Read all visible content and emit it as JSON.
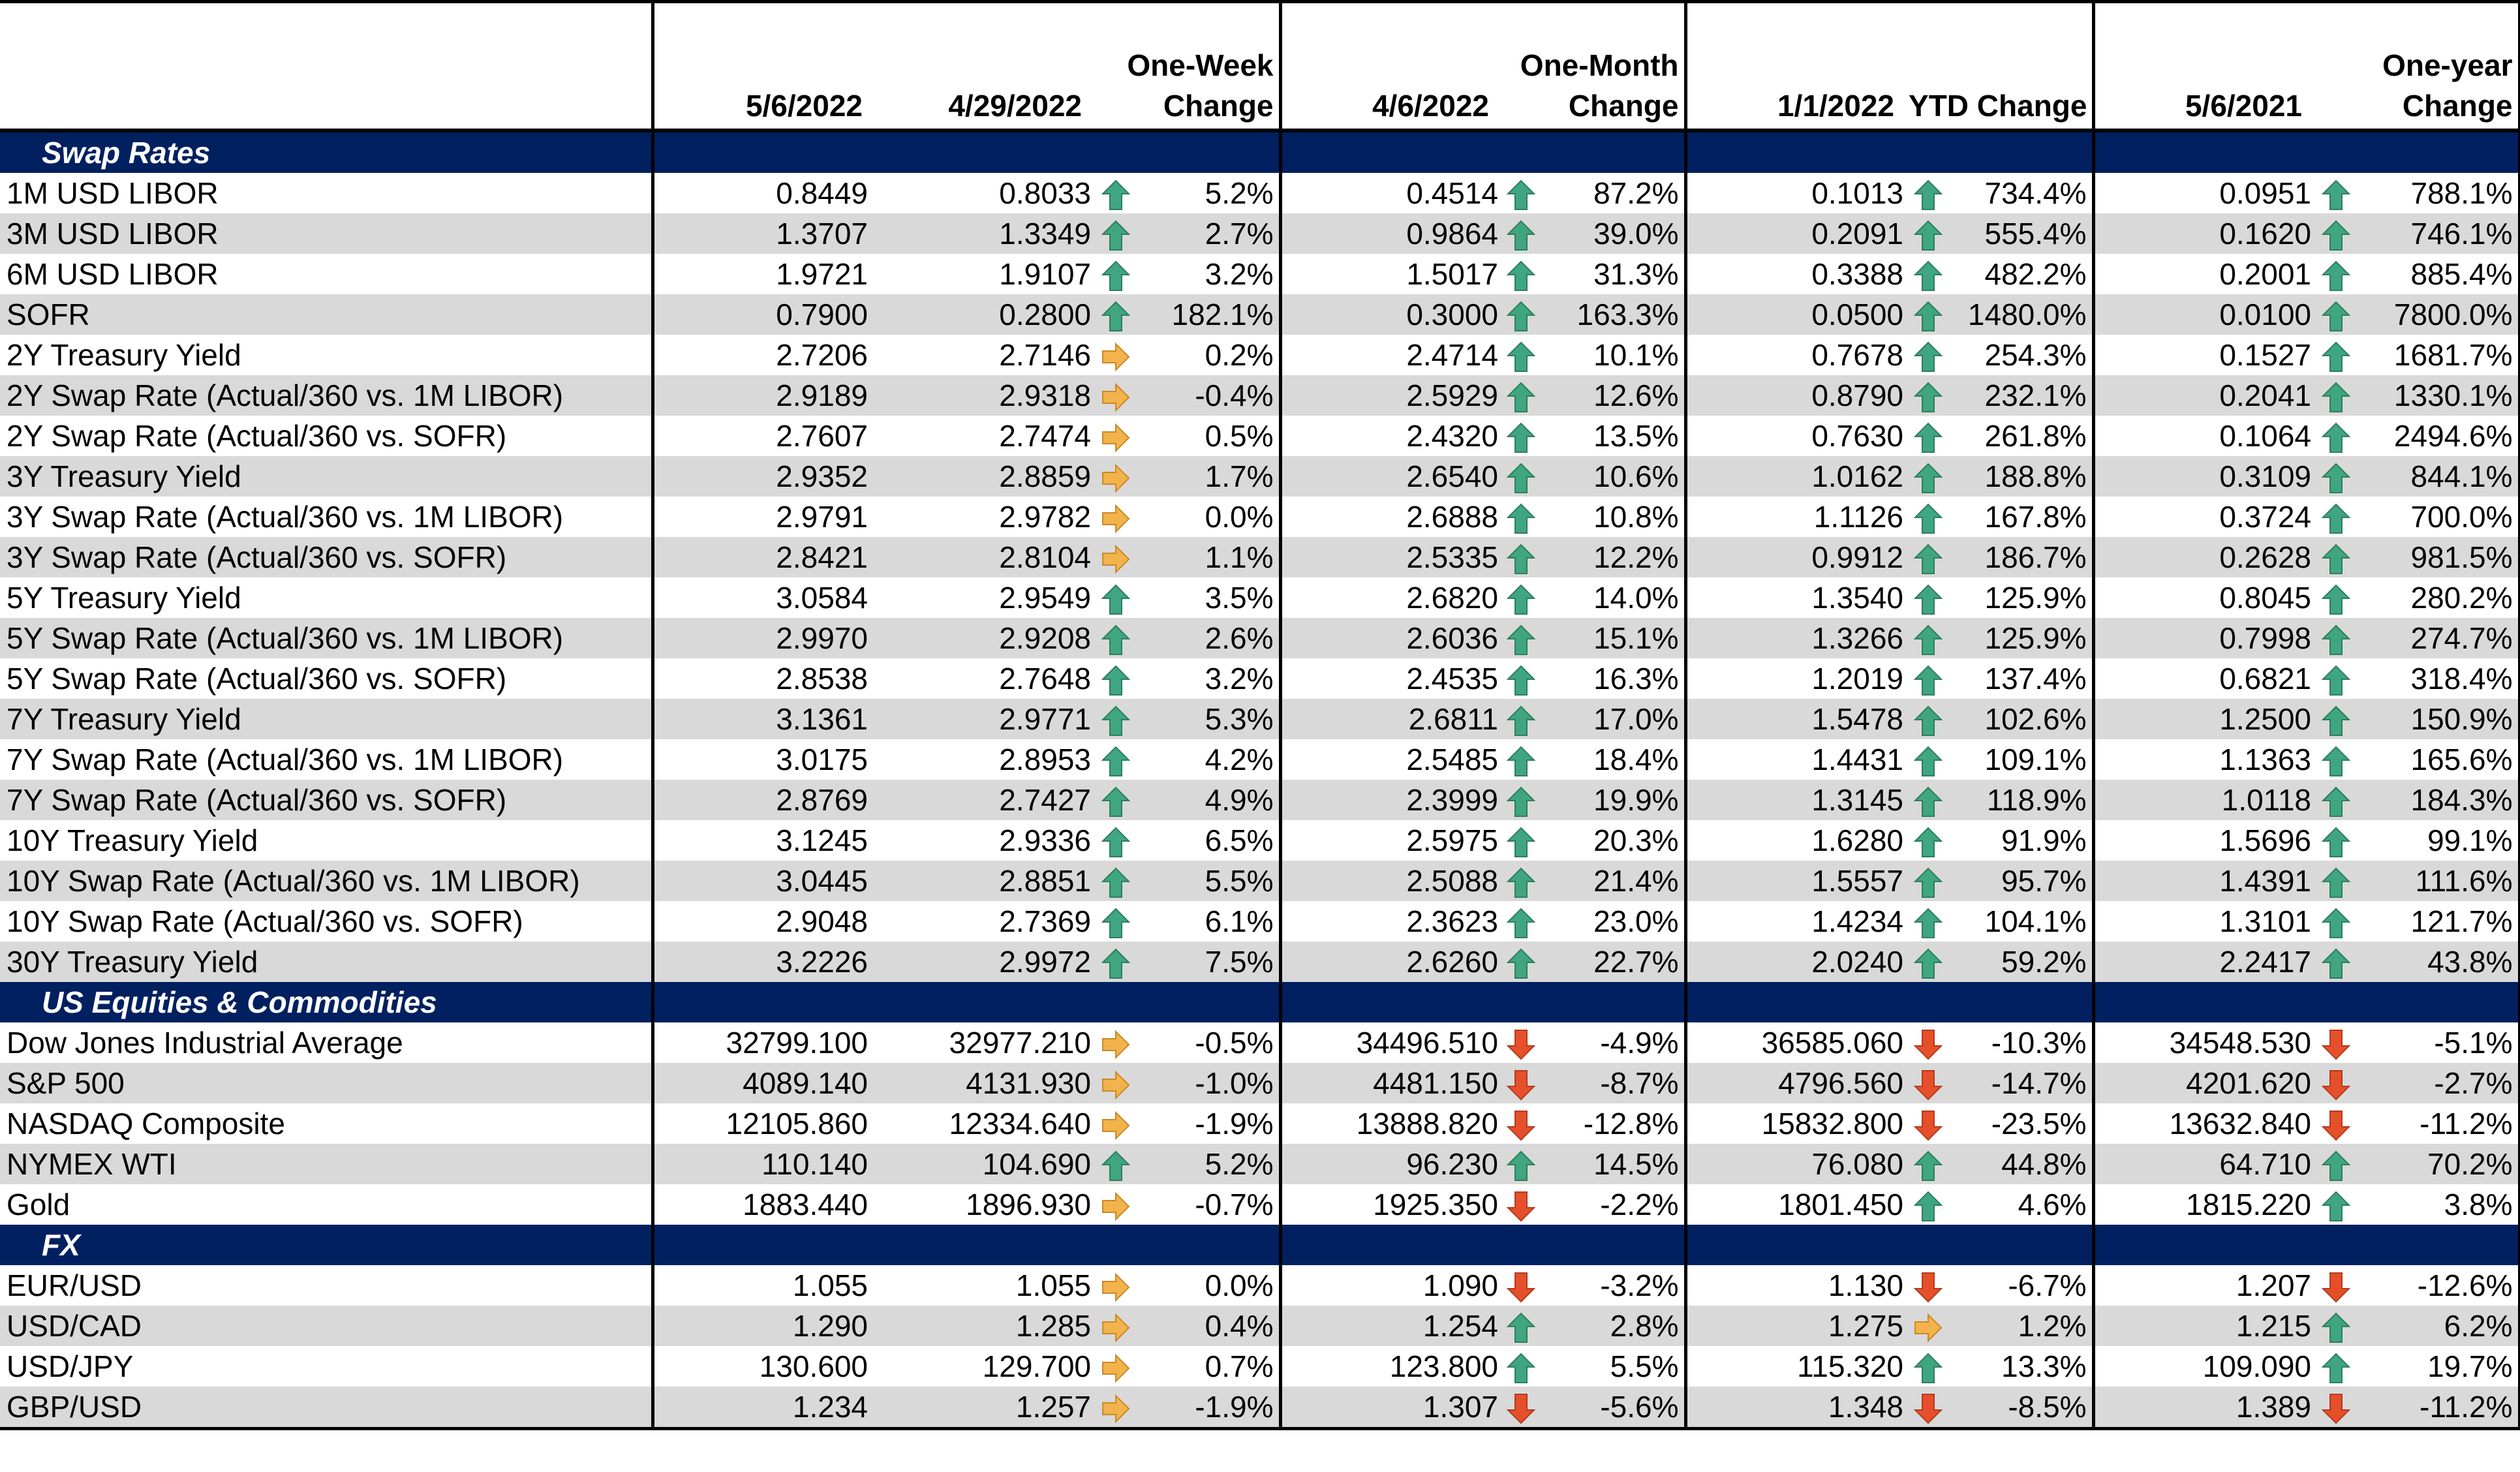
{
  "header": {
    "label": "",
    "col1": "5/6/2022",
    "col2": "4/29/2022",
    "col3": "One-Week Change",
    "col4": "4/6/2022",
    "col5": "One-Month Change",
    "col6": "1/1/2022",
    "col7": "YTD Change",
    "col8": "5/6/2021",
    "col9": "One-year Change"
  },
  "colors": {
    "section_bg": "#002060",
    "alt_row": "#d9d9d9",
    "up_arrow": "#3fa681",
    "down_arrow": "#e5502b",
    "flat_arrow": "#f2b34c"
  },
  "sections": [
    {
      "title": "Swap Rates",
      "rows": [
        {
          "name": "1M USD LIBOR",
          "v1": "0.8449",
          "v2": "0.8033",
          "a1": "up",
          "c1": "5.2%",
          "v3": "0.4514",
          "a2": "up",
          "c2": "87.2%",
          "v4": "0.1013",
          "a3": "up",
          "c3": "734.4%",
          "v5": "0.0951",
          "a4": "up",
          "c4": "788.1%"
        },
        {
          "name": "3M USD LIBOR",
          "v1": "1.3707",
          "v2": "1.3349",
          "a1": "up",
          "c1": "2.7%",
          "v3": "0.9864",
          "a2": "up",
          "c2": "39.0%",
          "v4": "0.2091",
          "a3": "up",
          "c3": "555.4%",
          "v5": "0.1620",
          "a4": "up",
          "c4": "746.1%"
        },
        {
          "name": "6M USD LIBOR",
          "v1": "1.9721",
          "v2": "1.9107",
          "a1": "up",
          "c1": "3.2%",
          "v3": "1.5017",
          "a2": "up",
          "c2": "31.3%",
          "v4": "0.3388",
          "a3": "up",
          "c3": "482.2%",
          "v5": "0.2001",
          "a4": "up",
          "c4": "885.4%"
        },
        {
          "name": "SOFR",
          "v1": "0.7900",
          "v2": "0.2800",
          "a1": "up",
          "c1": "182.1%",
          "v3": "0.3000",
          "a2": "up",
          "c2": "163.3%",
          "v4": "0.0500",
          "a3": "up",
          "c3": "1480.0%",
          "v5": "0.0100",
          "a4": "up",
          "c4": "7800.0%"
        },
        {
          "name": "2Y Treasury Yield",
          "v1": "2.7206",
          "v2": "2.7146",
          "a1": "flat",
          "c1": "0.2%",
          "v3": "2.4714",
          "a2": "up",
          "c2": "10.1%",
          "v4": "0.7678",
          "a3": "up",
          "c3": "254.3%",
          "v5": "0.1527",
          "a4": "up",
          "c4": "1681.7%"
        },
        {
          "name": "2Y Swap Rate (Actual/360 vs. 1M LIBOR)",
          "v1": "2.9189",
          "v2": "2.9318",
          "a1": "flat",
          "c1": "-0.4%",
          "v3": "2.5929",
          "a2": "up",
          "c2": "12.6%",
          "v4": "0.8790",
          "a3": "up",
          "c3": "232.1%",
          "v5": "0.2041",
          "a4": "up",
          "c4": "1330.1%"
        },
        {
          "name": "2Y Swap Rate (Actual/360 vs. SOFR)",
          "v1": "2.7607",
          "v2": "2.7474",
          "a1": "flat",
          "c1": "0.5%",
          "v3": "2.4320",
          "a2": "up",
          "c2": "13.5%",
          "v4": "0.7630",
          "a3": "up",
          "c3": "261.8%",
          "v5": "0.1064",
          "a4": "up",
          "c4": "2494.6%"
        },
        {
          "name": "3Y Treasury Yield",
          "v1": "2.9352",
          "v2": "2.8859",
          "a1": "flat",
          "c1": "1.7%",
          "v3": "2.6540",
          "a2": "up",
          "c2": "10.6%",
          "v4": "1.0162",
          "a3": "up",
          "c3": "188.8%",
          "v5": "0.3109",
          "a4": "up",
          "c4": "844.1%"
        },
        {
          "name": "3Y Swap Rate (Actual/360 vs. 1M LIBOR)",
          "v1": "2.9791",
          "v2": "2.9782",
          "a1": "flat",
          "c1": "0.0%",
          "v3": "2.6888",
          "a2": "up",
          "c2": "10.8%",
          "v4": "1.1126",
          "a3": "up",
          "c3": "167.8%",
          "v5": "0.3724",
          "a4": "up",
          "c4": "700.0%"
        },
        {
          "name": "3Y Swap Rate (Actual/360 vs. SOFR)",
          "v1": "2.8421",
          "v2": "2.8104",
          "a1": "flat",
          "c1": "1.1%",
          "v3": "2.5335",
          "a2": "up",
          "c2": "12.2%",
          "v4": "0.9912",
          "a3": "up",
          "c3": "186.7%",
          "v5": "0.2628",
          "a4": "up",
          "c4": "981.5%"
        },
        {
          "name": "5Y Treasury Yield",
          "v1": "3.0584",
          "v2": "2.9549",
          "a1": "up",
          "c1": "3.5%",
          "v3": "2.6820",
          "a2": "up",
          "c2": "14.0%",
          "v4": "1.3540",
          "a3": "up",
          "c3": "125.9%",
          "v5": "0.8045",
          "a4": "up",
          "c4": "280.2%"
        },
        {
          "name": "5Y Swap Rate (Actual/360 vs. 1M LIBOR)",
          "v1": "2.9970",
          "v2": "2.9208",
          "a1": "up",
          "c1": "2.6%",
          "v3": "2.6036",
          "a2": "up",
          "c2": "15.1%",
          "v4": "1.3266",
          "a3": "up",
          "c3": "125.9%",
          "v5": "0.7998",
          "a4": "up",
          "c4": "274.7%"
        },
        {
          "name": "5Y Swap Rate (Actual/360 vs. SOFR)",
          "v1": "2.8538",
          "v2": "2.7648",
          "a1": "up",
          "c1": "3.2%",
          "v3": "2.4535",
          "a2": "up",
          "c2": "16.3%",
          "v4": "1.2019",
          "a3": "up",
          "c3": "137.4%",
          "v5": "0.6821",
          "a4": "up",
          "c4": "318.4%"
        },
        {
          "name": "7Y Treasury Yield",
          "v1": "3.1361",
          "v2": "2.9771",
          "a1": "up",
          "c1": "5.3%",
          "v3": "2.6811",
          "a2": "up",
          "c2": "17.0%",
          "v4": "1.5478",
          "a3": "up",
          "c3": "102.6%",
          "v5": "1.2500",
          "a4": "up",
          "c4": "150.9%"
        },
        {
          "name": "7Y Swap Rate (Actual/360 vs. 1M LIBOR)",
          "v1": "3.0175",
          "v2": "2.8953",
          "a1": "up",
          "c1": "4.2%",
          "v3": "2.5485",
          "a2": "up",
          "c2": "18.4%",
          "v4": "1.4431",
          "a3": "up",
          "c3": "109.1%",
          "v5": "1.1363",
          "a4": "up",
          "c4": "165.6%"
        },
        {
          "name": "7Y Swap Rate (Actual/360 vs. SOFR)",
          "v1": "2.8769",
          "v2": "2.7427",
          "a1": "up",
          "c1": "4.9%",
          "v3": "2.3999",
          "a2": "up",
          "c2": "19.9%",
          "v4": "1.3145",
          "a3": "up",
          "c3": "118.9%",
          "v5": "1.0118",
          "a4": "up",
          "c4": "184.3%"
        },
        {
          "name": "10Y Treasury Yield",
          "v1": "3.1245",
          "v2": "2.9336",
          "a1": "up",
          "c1": "6.5%",
          "v3": "2.5975",
          "a2": "up",
          "c2": "20.3%",
          "v4": "1.6280",
          "a3": "up",
          "c3": "91.9%",
          "v5": "1.5696",
          "a4": "up",
          "c4": "99.1%"
        },
        {
          "name": "10Y Swap Rate (Actual/360 vs. 1M LIBOR)",
          "v1": "3.0445",
          "v2": "2.8851",
          "a1": "up",
          "c1": "5.5%",
          "v3": "2.5088",
          "a2": "up",
          "c2": "21.4%",
          "v4": "1.5557",
          "a3": "up",
          "c3": "95.7%",
          "v5": "1.4391",
          "a4": "up",
          "c4": "111.6%"
        },
        {
          "name": "10Y Swap Rate (Actual/360 vs. SOFR)",
          "v1": "2.9048",
          "v2": "2.7369",
          "a1": "up",
          "c1": "6.1%",
          "v3": "2.3623",
          "a2": "up",
          "c2": "23.0%",
          "v4": "1.4234",
          "a3": "up",
          "c3": "104.1%",
          "v5": "1.3101",
          "a4": "up",
          "c4": "121.7%"
        },
        {
          "name": "30Y Treasury Yield",
          "v1": "3.2226",
          "v2": "2.9972",
          "a1": "up",
          "c1": "7.5%",
          "v3": "2.6260",
          "a2": "up",
          "c2": "22.7%",
          "v4": "2.0240",
          "a3": "up",
          "c3": "59.2%",
          "v5": "2.2417",
          "a4": "up",
          "c4": "43.8%"
        }
      ]
    },
    {
      "title": "US Equities & Commodities",
      "rows": [
        {
          "name": "Dow Jones Industrial Average",
          "v1": "32799.100",
          "v2": "32977.210",
          "a1": "flat",
          "c1": "-0.5%",
          "v3": "34496.510",
          "a2": "down",
          "c2": "-4.9%",
          "v4": "36585.060",
          "a3": "down",
          "c3": "-10.3%",
          "v5": "34548.530",
          "a4": "down",
          "c4": "-5.1%"
        },
        {
          "name": "S&P 500",
          "v1": "4089.140",
          "v2": "4131.930",
          "a1": "flat",
          "c1": "-1.0%",
          "v3": "4481.150",
          "a2": "down",
          "c2": "-8.7%",
          "v4": "4796.560",
          "a3": "down",
          "c3": "-14.7%",
          "v5": "4201.620",
          "a4": "down",
          "c4": "-2.7%"
        },
        {
          "name": "NASDAQ Composite",
          "v1": "12105.860",
          "v2": "12334.640",
          "a1": "flat",
          "c1": "-1.9%",
          "v3": "13888.820",
          "a2": "down",
          "c2": "-12.8%",
          "v4": "15832.800",
          "a3": "down",
          "c3": "-23.5%",
          "v5": "13632.840",
          "a4": "down",
          "c4": "-11.2%"
        },
        {
          "name": "NYMEX WTI",
          "v1": "110.140",
          "v2": "104.690",
          "a1": "up",
          "c1": "5.2%",
          "v3": "96.230",
          "a2": "up",
          "c2": "14.5%",
          "v4": "76.080",
          "a3": "up",
          "c3": "44.8%",
          "v5": "64.710",
          "a4": "up",
          "c4": "70.2%"
        },
        {
          "name": "Gold",
          "v1": "1883.440",
          "v2": "1896.930",
          "a1": "flat",
          "c1": "-0.7%",
          "v3": "1925.350",
          "a2": "down",
          "c2": "-2.2%",
          "v4": "1801.450",
          "a3": "up",
          "c3": "4.6%",
          "v5": "1815.220",
          "a4": "up",
          "c4": "3.8%"
        }
      ]
    },
    {
      "title": "FX",
      "rows": [
        {
          "name": "EUR/USD",
          "v1": "1.055",
          "v2": "1.055",
          "a1": "flat",
          "c1": "0.0%",
          "v3": "1.090",
          "a2": "down",
          "c2": "-3.2%",
          "v4": "1.130",
          "a3": "down",
          "c3": "-6.7%",
          "v5": "1.207",
          "a4": "down",
          "c4": "-12.6%"
        },
        {
          "name": "USD/CAD",
          "v1": "1.290",
          "v2": "1.285",
          "a1": "flat",
          "c1": "0.4%",
          "v3": "1.254",
          "a2": "up",
          "c2": "2.8%",
          "v4": "1.275",
          "a3": "flat",
          "c3": "1.2%",
          "v5": "1.215",
          "a4": "up",
          "c4": "6.2%"
        },
        {
          "name": "USD/JPY",
          "v1": "130.600",
          "v2": "129.700",
          "a1": "flat",
          "c1": "0.7%",
          "v3": "123.800",
          "a2": "up",
          "c2": "5.5%",
          "v4": "115.320",
          "a3": "up",
          "c3": "13.3%",
          "v5": "109.090",
          "a4": "up",
          "c4": "19.7%"
        },
        {
          "name": "GBP/USD",
          "v1": "1.234",
          "v2": "1.257",
          "a1": "flat",
          "c1": "-1.9%",
          "v3": "1.307",
          "a2": "down",
          "c2": "-5.6%",
          "v4": "1.348",
          "a3": "down",
          "c3": "-8.5%",
          "v5": "1.389",
          "a4": "down",
          "c4": "-11.2%"
        }
      ]
    }
  ]
}
